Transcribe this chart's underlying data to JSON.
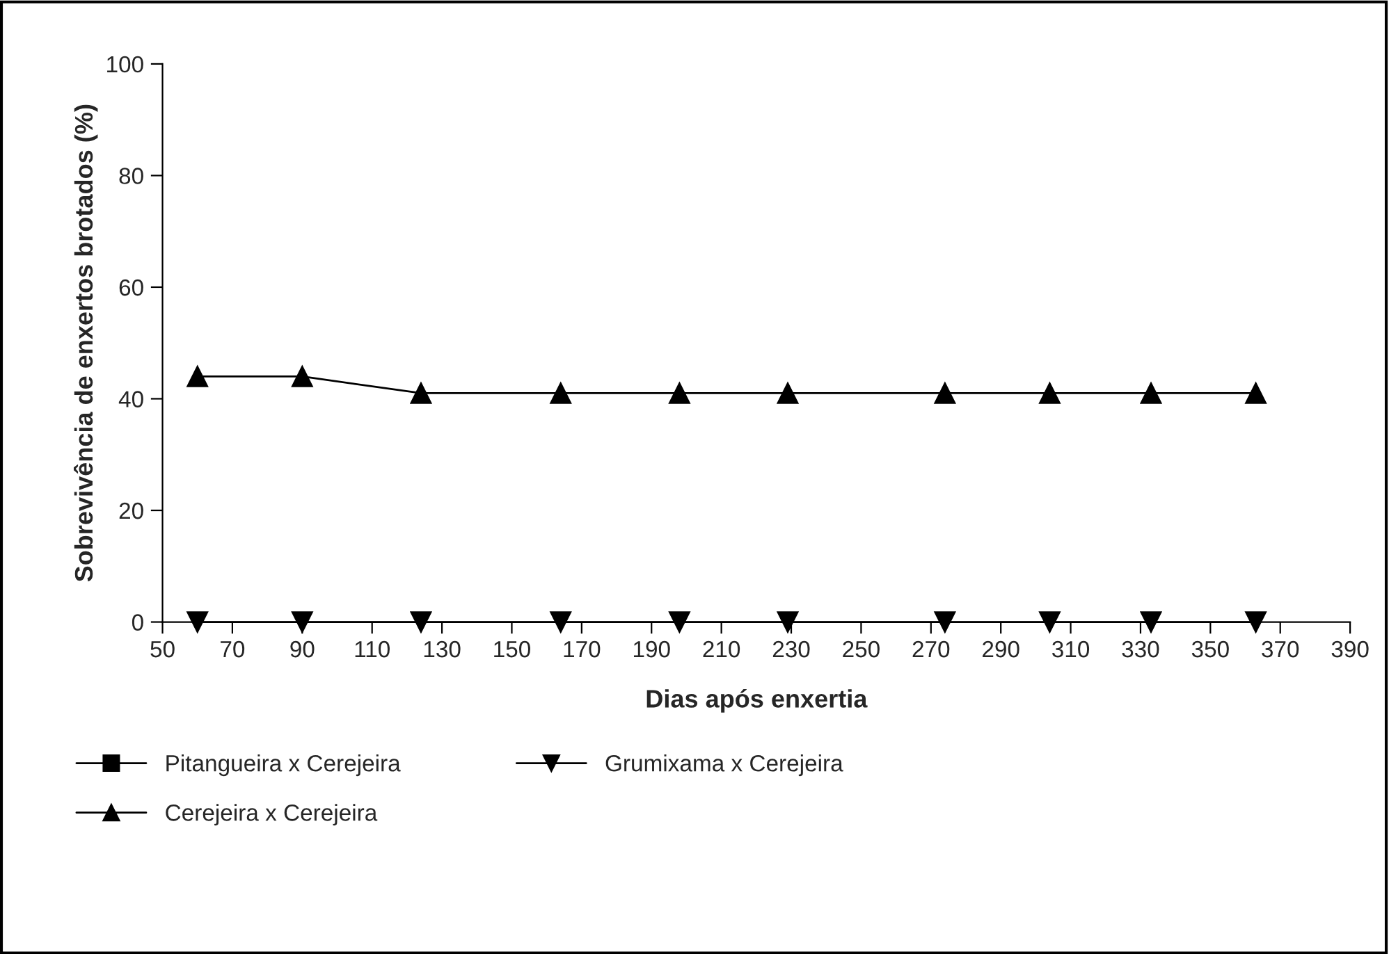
{
  "chart_data": {
    "type": "line",
    "xlabel": "Dias após enxertia",
    "ylabel": "Sobrevivência de enxertos brotados (%)",
    "x": [
      60,
      90,
      124,
      164,
      198,
      229,
      274,
      304,
      333,
      363
    ],
    "series": [
      {
        "name": "Pitangueira x Cerejeira",
        "color": "#000000",
        "marker": "square",
        "values": [
          null,
          null,
          null,
          null,
          null,
          null,
          null,
          null,
          null,
          null
        ]
      },
      {
        "name": "Cerejeira x Cerejeira",
        "color": "#000000",
        "marker": "triangle",
        "values": [
          44,
          44,
          41,
          41,
          41,
          41,
          41,
          41,
          41,
          41
        ]
      },
      {
        "name": "Grumixama x Cerejeira",
        "color": "#000000",
        "marker": "triangle_down",
        "values": [
          0,
          0,
          0,
          0,
          0,
          0,
          0,
          0,
          0,
          0
        ]
      }
    ],
    "xlim": [
      50,
      390
    ],
    "xticks": [
      50,
      70,
      90,
      110,
      130,
      150,
      170,
      190,
      210,
      230,
      250,
      270,
      290,
      310,
      330,
      350,
      370,
      390
    ],
    "ylim": [
      0,
      100
    ],
    "yticks": [
      0,
      20,
      40,
      60,
      80,
      100
    ],
    "grid": false,
    "legend": "bottom",
    "line_style": "solid"
  }
}
